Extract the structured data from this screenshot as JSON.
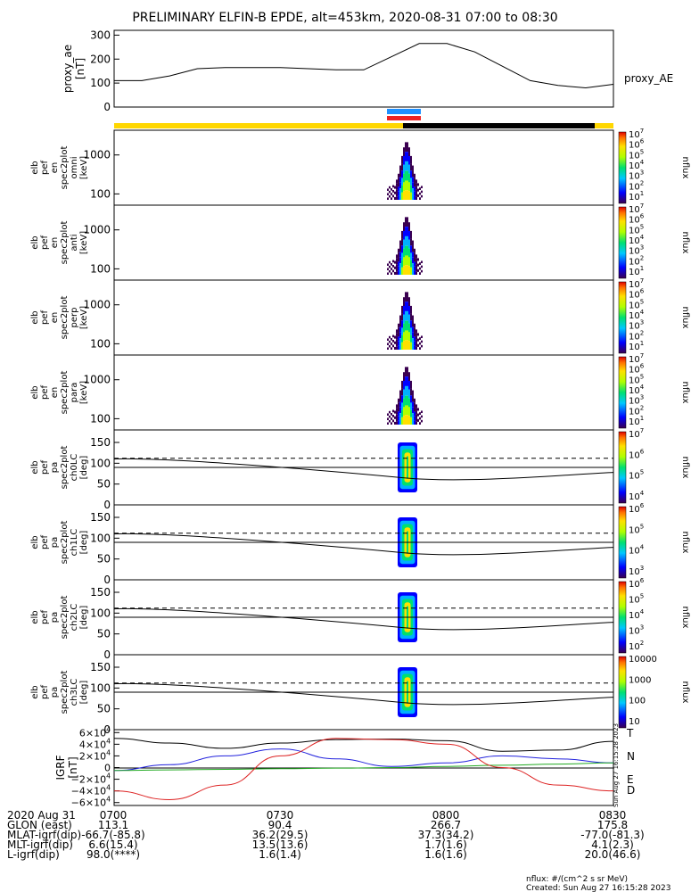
{
  "title": "PRELIMINARY ELFIN-B EPDE, alt=453km, 2020-08-31 07:00 to 08:30",
  "proxy_ae": {
    "ylabel": [
      "proxy_ae",
      "[nT]"
    ],
    "legend": "proxy_AE",
    "yticks": [
      "300",
      "200",
      "100",
      "0"
    ]
  },
  "spec_panels": [
    {
      "ylabel": [
        "elb",
        "pef",
        "en",
        "spec2plot",
        "omni",
        "[keV]"
      ],
      "yticks": [
        "1000",
        "100"
      ],
      "cbar_ticks": [
        "10^7",
        "10^6",
        "10^5",
        "10^4",
        "10^3",
        "10^2",
        "10^1"
      ],
      "cbar_label": "nflux"
    },
    {
      "ylabel": [
        "elb",
        "pef",
        "en",
        "spec2plot",
        "anti",
        "[keV]"
      ],
      "yticks": [
        "1000",
        "100"
      ],
      "cbar_ticks": [
        "10^7",
        "10^6",
        "10^5",
        "10^4",
        "10^3",
        "10^2",
        "10^1"
      ],
      "cbar_label": "nflux"
    },
    {
      "ylabel": [
        "elb",
        "pef",
        "en",
        "spec2plot",
        "perp",
        "[keV]"
      ],
      "yticks": [
        "1000",
        "100"
      ],
      "cbar_ticks": [
        "10^7",
        "10^6",
        "10^5",
        "10^4",
        "10^3",
        "10^2",
        "10^1"
      ],
      "cbar_label": "nflux"
    },
    {
      "ylabel": [
        "elb",
        "pef",
        "en",
        "spec2plot",
        "para",
        "[keV]"
      ],
      "yticks": [
        "1000",
        "100"
      ],
      "cbar_ticks": [
        "10^7",
        "10^6",
        "10^5",
        "10^4",
        "10^3",
        "10^2",
        "10^1"
      ],
      "cbar_label": "nflux"
    }
  ],
  "pa_panels": [
    {
      "ylabel": [
        "elb",
        "pef",
        "pa",
        "spec2plot",
        "ch0LC",
        "[deg]"
      ],
      "yticks": [
        "150",
        "100",
        "50",
        "0"
      ],
      "cbar_ticks": [
        "10^7",
        "10^6",
        "10^5",
        "10^4"
      ],
      "cbar_label": "nflux"
    },
    {
      "ylabel": [
        "elb",
        "pef",
        "pa",
        "spec2plot",
        "ch1LC",
        "[deg]"
      ],
      "yticks": [
        "150",
        "100",
        "50",
        "0"
      ],
      "cbar_ticks": [
        "10^6",
        "10^5",
        "10^4",
        "10^3"
      ],
      "cbar_label": "nflux"
    },
    {
      "ylabel": [
        "elb",
        "pef",
        "pa",
        "spec2plot",
        "ch2LC",
        "[deg]"
      ],
      "yticks": [
        "150",
        "100",
        "50",
        "0"
      ],
      "cbar_ticks": [
        "10^6",
        "10^5",
        "10^4",
        "10^3",
        "10^2"
      ],
      "cbar_label": "nflux"
    },
    {
      "ylabel": [
        "elb",
        "pef",
        "pa",
        "spec2plot",
        "ch3LC",
        "[deg]"
      ],
      "yticks": [
        "150",
        "100",
        "50",
        "0"
      ],
      "cbar_ticks": [
        "10000",
        "1000",
        "100",
        "10"
      ],
      "cbar_label": "nflux"
    }
  ],
  "igrf": {
    "ylabel": [
      "IGRF",
      "[nT]"
    ],
    "yticks": [
      "6×10^4",
      "4×10^4",
      "2×10^4",
      "0",
      "−2×10^4",
      "−4×10^4",
      "−6×10^4"
    ],
    "legend": [
      {
        "label": "T",
        "color": "#000000"
      },
      {
        "label": "N",
        "color": "#2222dd"
      },
      {
        "label": "E",
        "color": "#22aa22"
      },
      {
        "label": "D",
        "color": "#dd2222"
      }
    ],
    "side_stamp": "Sun Aug 27 16:15:28 2023"
  },
  "footer": {
    "rows": [
      {
        "label": "2020 Aug 31",
        "values": [
          "0700",
          "0730",
          "0800",
          "0830"
        ]
      },
      {
        "label": "GLON (east)",
        "values": [
          "113.1",
          "90.4",
          "266.7",
          "175.8"
        ]
      },
      {
        "label": "MLAT-igrf(dip)",
        "values": [
          "-66.7(-85.8)",
          "36.2(29.5)",
          "37.3(34.2)",
          "-77.0(-81.3)"
        ]
      },
      {
        "label": "MLT-igrf(dip)",
        "values": [
          "6.6(15.4)",
          "13.5(13.6)",
          "1.7(1.6)",
          "4.1(2.3)"
        ]
      },
      {
        "label": "L-igrf(dip)",
        "values": [
          "98.0(****)",
          "1.6(1.4)",
          "1.6(1.6)",
          "20.0(46.6)"
        ]
      }
    ],
    "units": "nflux: #/(cm^2 s sr MeV)",
    "created": "Created: Sun Aug 27 16:15:28 2023"
  },
  "colors": {
    "sun_bar": "#ffd700",
    "dark_bar": "#000000",
    "blue_bar": "#1e90ff",
    "red_bar": "#ee2222"
  },
  "chart_data": [
    {
      "type": "line",
      "x": [
        "07:00",
        "07:05",
        "07:10",
        "07:15",
        "07:20",
        "07:25",
        "07:30",
        "07:35",
        "07:40",
        "07:45",
        "07:50",
        "07:55",
        "08:00",
        "08:05",
        "08:10",
        "08:15",
        "08:20",
        "08:25",
        "08:30"
      ],
      "series": [
        {
          "name": "proxy_AE",
          "values": [
            110,
            110,
            130,
            160,
            165,
            165,
            165,
            160,
            155,
            155,
            210,
            265,
            265,
            230,
            170,
            110,
            90,
            80,
            95
          ]
        }
      ],
      "ylim": [
        0,
        320
      ]
    },
    {
      "type": "line",
      "x": [
        "07:00",
        "07:10",
        "07:20",
        "07:30",
        "07:40",
        "07:50",
        "08:00",
        "08:10",
        "08:20",
        "08:30"
      ],
      "series": [
        {
          "name": "T",
          "values": [
            50000,
            42000,
            33000,
            42000,
            48000,
            49000,
            46000,
            28000,
            30000,
            45000
          ]
        },
        {
          "name": "N",
          "values": [
            -5000,
            5000,
            20000,
            32000,
            15000,
            2000,
            8000,
            20000,
            15000,
            8000
          ]
        },
        {
          "name": "E",
          "values": [
            -5000,
            -4000,
            -3000,
            -2000,
            -1000,
            0,
            2000,
            4000,
            6000,
            8000
          ]
        },
        {
          "name": "D",
          "values": [
            -40000,
            -55000,
            -30000,
            20000,
            50000,
            48000,
            40000,
            0,
            -30000,
            -40000
          ]
        }
      ],
      "ylim": [
        -65000,
        65000
      ]
    }
  ]
}
